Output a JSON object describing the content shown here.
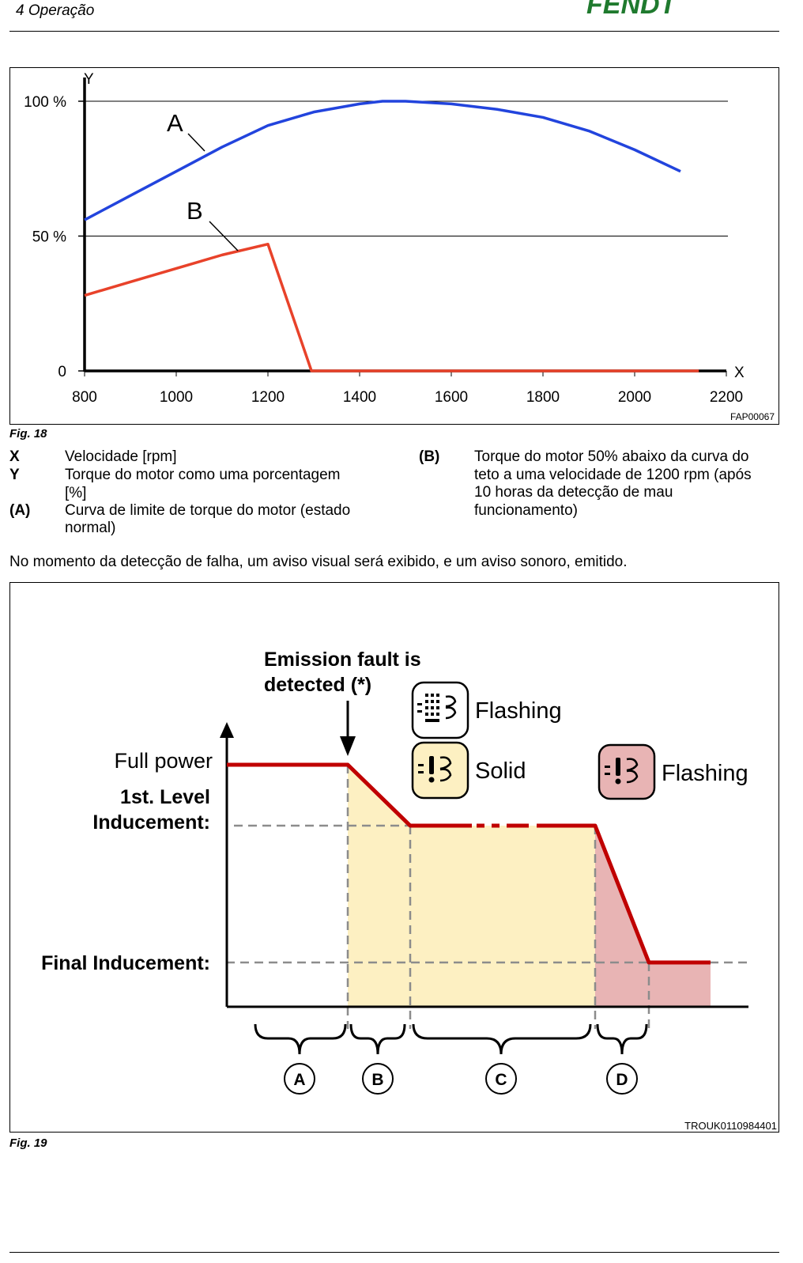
{
  "header": {
    "section_title": "4 Operação",
    "logo_text": "FENDT"
  },
  "figure18": {
    "caption": "Fig. 18",
    "ref_code": "FAP00067",
    "chart_data": {
      "type": "line",
      "x_axis_letter": "X",
      "y_axis_letter": "Y",
      "x_ticks": [
        "800",
        "1000",
        "1200",
        "1400",
        "1600",
        "1800",
        "2000",
        "2200"
      ],
      "y_ticks": [
        "0",
        "50 %",
        "100 %"
      ],
      "xlim": [
        800,
        2200
      ],
      "ylim": [
        0,
        100
      ],
      "grid": "horizontal at 50 and 100",
      "series": [
        {
          "name": "A",
          "color": "#2244dd",
          "x": [
            800,
            900,
            1000,
            1100,
            1200,
            1300,
            1400,
            1450,
            1500,
            1600,
            1700,
            1800,
            1900,
            2000,
            2100
          ],
          "y": [
            56,
            65,
            74,
            83,
            91,
            96,
            99,
            100,
            100,
            99,
            97,
            94,
            89,
            82,
            74
          ]
        },
        {
          "name": "B",
          "color": "#e8422a",
          "x": [
            800,
            900,
            1000,
            1100,
            1200,
            1295,
            1300,
            1400,
            1600,
            1800,
            2000,
            2140
          ],
          "y": [
            28,
            33,
            38,
            43,
            47,
            0,
            0,
            0,
            0,
            0,
            0,
            0
          ]
        }
      ]
    },
    "legend": [
      {
        "key": "X",
        "text": "Velocidade [rpm]"
      },
      {
        "key": "Y",
        "text_line1": "Torque do motor como uma porcentagem",
        "text_line2": "[%]"
      },
      {
        "key": "(A)",
        "text_line1": "Curva de limite de torque do motor (estado",
        "text_line2": "normal)"
      },
      {
        "key": "(B)",
        "text_line1": "Torque do motor 50% abaixo da curva do",
        "text_line2": "teto a uma velocidade de 1200 rpm (após",
        "text_line3": "10 horas da detecção de mau",
        "text_line4": "funcionamento)"
      }
    ]
  },
  "body_text": "No momento da detecção de falha, um aviso visual será exibido, e um aviso sonoro, emitido.",
  "figure19": {
    "caption": "Fig. 19",
    "ref_code": "TROUK0110984401",
    "labels": {
      "full_power": "Full power",
      "first_level_line1": "1st. Level",
      "first_level_line2": "Inducement:",
      "final_inducement": "Final Inducement:",
      "fault_line1": "Emission fault is",
      "fault_line2": "detected (*)",
      "icon1_state": "Flashing",
      "icon2_state": "Solid",
      "icon3_state": "Flashing"
    },
    "phases": [
      "A",
      "B",
      "C",
      "D"
    ],
    "colors": {
      "power_line": "#c00000",
      "zone_yellow": "#fdf0c2",
      "zone_red": "#e8b4b4",
      "icon_yellow_bg": "#fdf0c2",
      "icon_red_bg": "#e8b4b4",
      "dash": "#8c8c8c"
    }
  }
}
